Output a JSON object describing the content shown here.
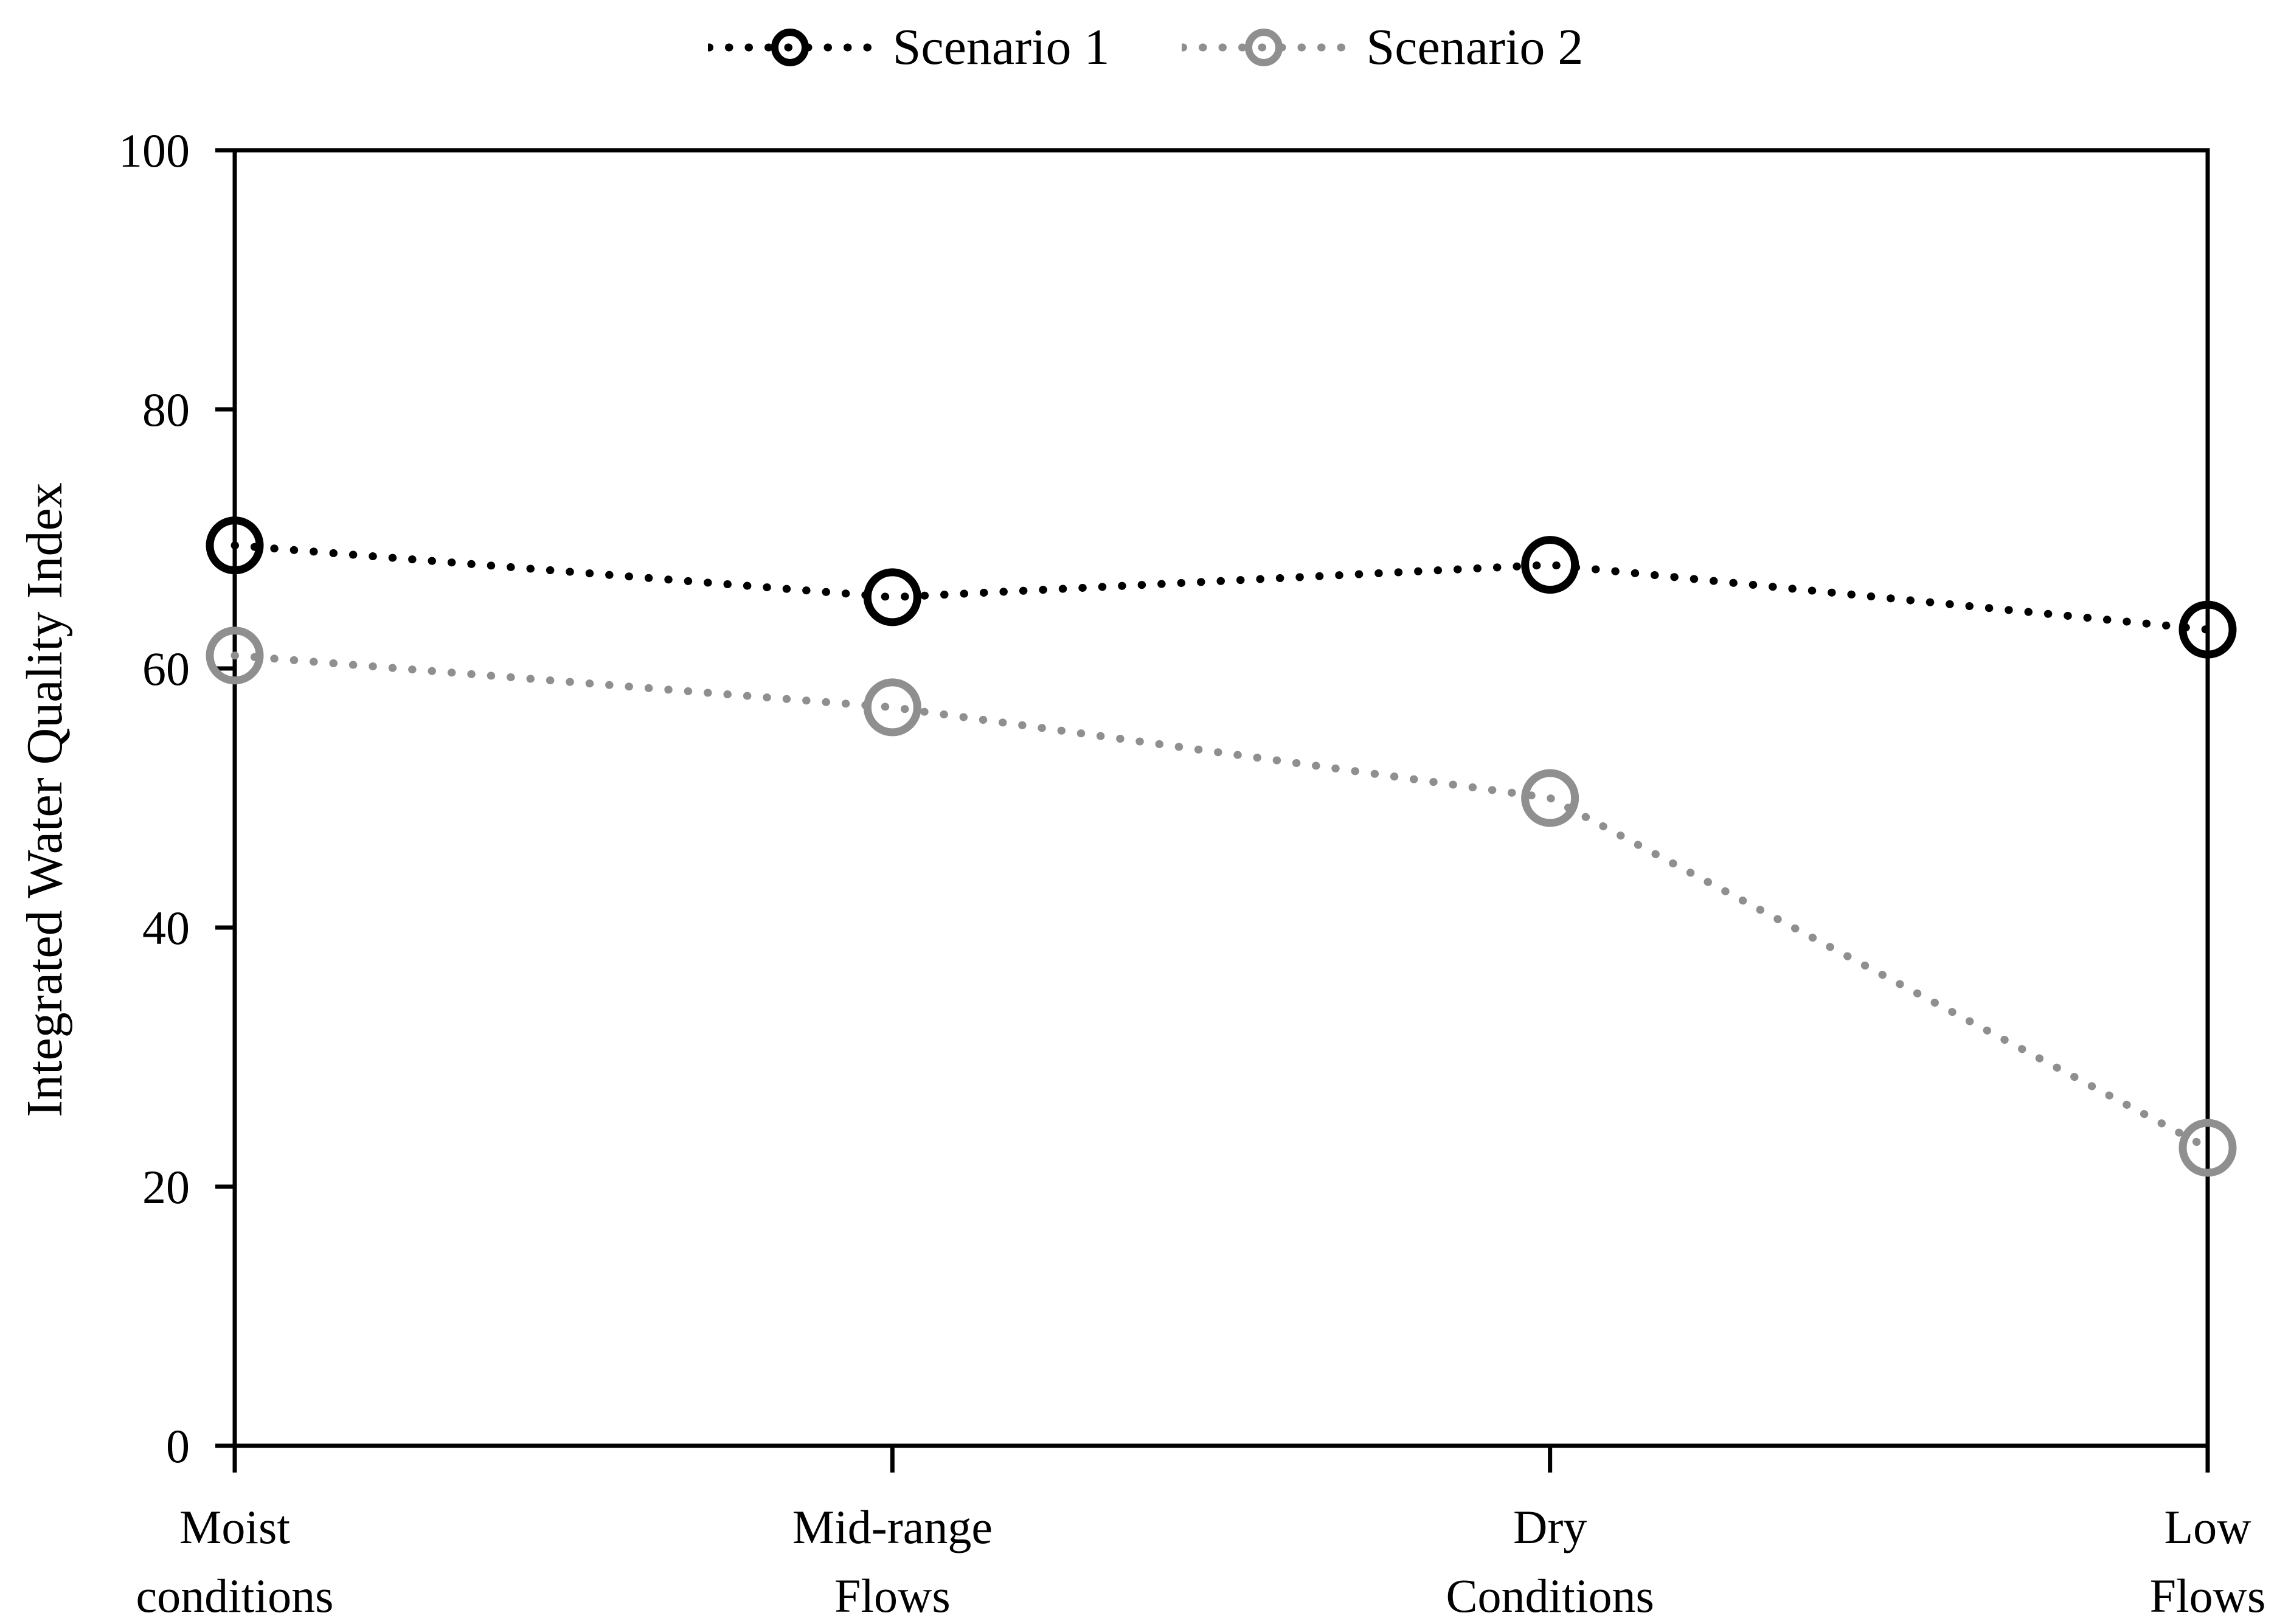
{
  "figure": {
    "background": "#ffffff",
    "text_color": "#000000"
  },
  "chart_data": {
    "type": "line",
    "line_style": "dotted",
    "marker": "open-circle",
    "grid": false,
    "legend_position": "top-center",
    "title": "",
    "xlabel": "",
    "ylabel": "Integrated Water Quality Index",
    "ylim": [
      0,
      100
    ],
    "yticks": [
      0,
      20,
      40,
      60,
      80,
      100
    ],
    "ytick_labels": [
      "0",
      "20",
      "40",
      "60",
      "80",
      "100"
    ],
    "categories": [
      "Moist\nconditions",
      "Mid-range\nFlows",
      "Dry\nConditions",
      "Low\nFlows"
    ],
    "series": [
      {
        "name": "Scenario 1",
        "color": "#000000",
        "values": [
          69.5,
          65.5,
          68,
          63
        ]
      },
      {
        "name": "Scenario 2",
        "color": "#8f8f8f",
        "values": [
          61,
          57,
          50,
          23
        ]
      }
    ]
  }
}
